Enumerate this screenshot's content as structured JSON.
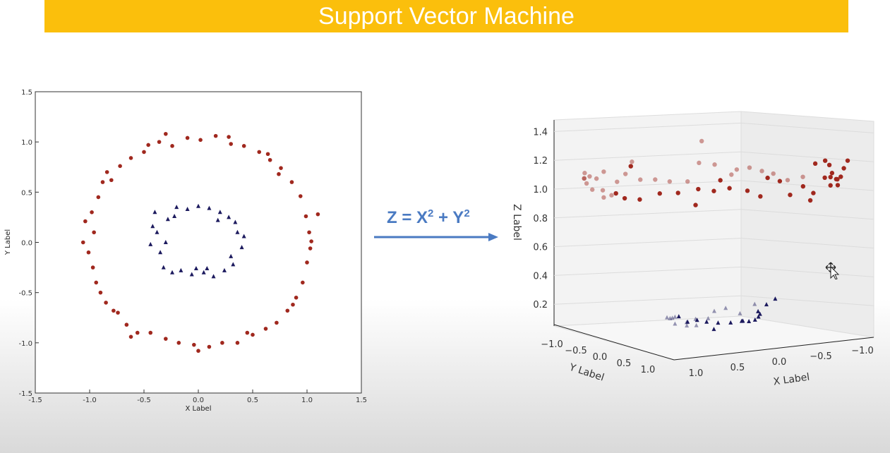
{
  "title": "Support Vector Machine",
  "formula": {
    "lhs": "Z = X",
    "mid": " + Y",
    "exp": "2"
  },
  "chart_data": [
    {
      "type": "scatter",
      "xlabel": "X Label",
      "ylabel": "Y Label",
      "xlim": [
        -1.5,
        1.5
      ],
      "ylim": [
        -1.5,
        1.5
      ],
      "x_ticks": [
        "-1.5",
        "-1.0",
        "-0.5",
        "0.0",
        "0.5",
        "1.0",
        "1.5"
      ],
      "y_ticks": [
        "1.5",
        "1.0",
        "0.5",
        "0.0",
        "-0.5",
        "-1.0",
        "-1.5"
      ],
      "grid": false,
      "series": [
        {
          "marker": "circle",
          "color": "#a0281e",
          "points": [
            [
              -1.04,
              0.21
            ],
            [
              -1.01,
              -0.1
            ],
            [
              -0.98,
              0.3
            ],
            [
              -0.94,
              -0.4
            ],
            [
              -0.92,
              0.45
            ],
            [
              -0.9,
              -0.5
            ],
            [
              -0.88,
              0.6
            ],
            [
              -0.85,
              -0.6
            ],
            [
              -0.8,
              0.62
            ],
            [
              -0.78,
              -0.68
            ],
            [
              -0.72,
              0.76
            ],
            [
              -0.66,
              -0.82
            ],
            [
              -0.62,
              0.84
            ],
            [
              -0.56,
              -0.9
            ],
            [
              -0.5,
              0.9
            ],
            [
              -0.44,
              -0.9
            ],
            [
              -0.36,
              1.0
            ],
            [
              -0.3,
              -0.96
            ],
            [
              -0.24,
              0.96
            ],
            [
              -0.18,
              -1.0
            ],
            [
              -0.1,
              1.04
            ],
            [
              -0.04,
              -1.02
            ],
            [
              0.02,
              1.02
            ],
            [
              0.1,
              -1.04
            ],
            [
              0.16,
              1.06
            ],
            [
              0.22,
              -1.0
            ],
            [
              0.3,
              0.98
            ],
            [
              0.36,
              -1.0
            ],
            [
              0.42,
              0.96
            ],
            [
              0.5,
              -0.92
            ],
            [
              0.56,
              0.9
            ],
            [
              0.62,
              -0.86
            ],
            [
              0.66,
              0.82
            ],
            [
              0.72,
              -0.8
            ],
            [
              0.76,
              0.74
            ],
            [
              0.82,
              -0.68
            ],
            [
              0.86,
              0.6
            ],
            [
              0.9,
              -0.55
            ],
            [
              0.94,
              0.46
            ],
            [
              0.96,
              -0.4
            ],
            [
              0.99,
              0.26
            ],
            [
              1.0,
              -0.2
            ],
            [
              1.02,
              0.1
            ],
            [
              1.03,
              -0.06
            ],
            [
              1.04,
              0.01
            ],
            [
              -1.06,
              0.0
            ],
            [
              -0.97,
              -0.25
            ],
            [
              -0.84,
              0.7
            ],
            [
              -0.62,
              -0.94
            ],
            [
              -0.3,
              1.08
            ],
            [
              0.0,
              -1.08
            ],
            [
              0.28,
              1.05
            ],
            [
              0.64,
              0.88
            ],
            [
              0.87,
              -0.62
            ],
            [
              1.1,
              0.28
            ],
            [
              -0.74,
              -0.7
            ],
            [
              -0.46,
              0.97
            ],
            [
              0.45,
              -0.9
            ],
            [
              0.74,
              0.68
            ],
            [
              -0.96,
              0.1
            ]
          ]
        },
        {
          "marker": "triangle",
          "color": "#1c1a5e",
          "points": [
            [
              -0.4,
              0.3
            ],
            [
              -0.38,
              0.1
            ],
            [
              -0.35,
              -0.1
            ],
            [
              -0.32,
              -0.25
            ],
            [
              -0.28,
              0.23
            ],
            [
              -0.24,
              -0.3
            ],
            [
              -0.2,
              0.35
            ],
            [
              -0.16,
              -0.28
            ],
            [
              -0.1,
              0.33
            ],
            [
              -0.06,
              -0.32
            ],
            [
              0.0,
              0.36
            ],
            [
              0.05,
              -0.3
            ],
            [
              0.1,
              0.34
            ],
            [
              0.14,
              -0.34
            ],
            [
              0.2,
              0.3
            ],
            [
              0.24,
              -0.28
            ],
            [
              0.28,
              0.25
            ],
            [
              0.32,
              -0.22
            ],
            [
              0.36,
              0.1
            ],
            [
              0.4,
              -0.05
            ],
            [
              0.42,
              0.06
            ],
            [
              -0.44,
              -0.02
            ],
            [
              -0.42,
              0.16
            ],
            [
              -0.02,
              -0.26
            ],
            [
              0.18,
              0.22
            ],
            [
              0.34,
              0.2
            ],
            [
              0.3,
              -0.14
            ],
            [
              -0.3,
              0.0
            ],
            [
              -0.22,
              0.26
            ],
            [
              0.08,
              -0.26
            ]
          ]
        }
      ]
    },
    {
      "type": "scatter",
      "xlabel": "X Label",
      "ylabel": "Y Label",
      "zlabel": "Z Label",
      "z_ticks": [
        "1.4",
        "1.2",
        "1.0",
        "0.8",
        "0.6",
        "0.4",
        "0.2"
      ],
      "y_ticks": [
        "−1.0",
        "−0.5",
        "0.0",
        "0.5",
        "1.0"
      ],
      "x_ticks": [
        "1.0",
        "0.5",
        "0.0",
        "−0.5",
        "−1.0"
      ],
      "projection": "3d"
    }
  ]
}
